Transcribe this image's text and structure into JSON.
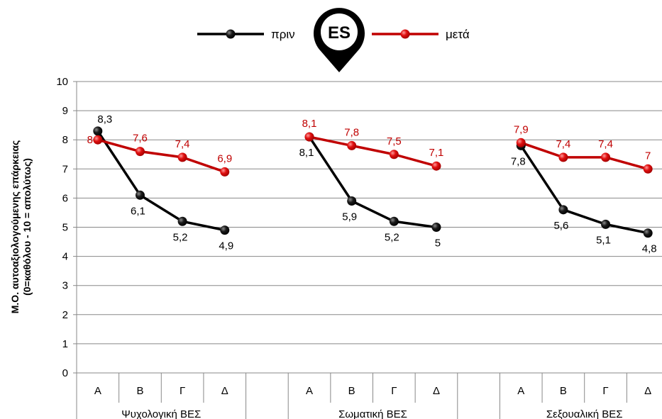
{
  "chart_data": {
    "type": "line",
    "ylabel": [
      "Μ.Ο. αυτοαξιολογούμενης επάρκειας",
      "(0=καθόλου - 10 = απολύτως)"
    ],
    "ylim": [
      0,
      10
    ],
    "yticks": [
      0,
      1,
      2,
      3,
      4,
      5,
      6,
      7,
      8,
      9,
      10
    ],
    "grid": true,
    "legend_position": "top-center",
    "logo_text": "ES",
    "groups": [
      {
        "name": "Ψυχολογική ΒΕΣ",
        "categories": [
          "Α",
          "Β",
          "Γ",
          "Δ"
        ]
      },
      {
        "name": "Σωματική ΒΕΣ",
        "categories": [
          "Α",
          "Β",
          "Γ",
          "Δ"
        ]
      },
      {
        "name": "Σεξουαλική ΒΕΣ",
        "categories": [
          "Α",
          "Β",
          "Γ",
          "Δ"
        ]
      }
    ],
    "series": [
      {
        "name": "πριν",
        "color": "#000000",
        "values": [
          [
            8.3,
            6.1,
            5.2,
            4.9
          ],
          [
            8.1,
            5.9,
            5.2,
            5
          ],
          [
            7.8,
            5.6,
            5.1,
            4.8
          ]
        ]
      },
      {
        "name": "μετά",
        "color": "#c00000",
        "values": [
          [
            8,
            7.6,
            7.4,
            6.9
          ],
          [
            8.1,
            7.8,
            7.5,
            7.1
          ],
          [
            7.9,
            7.4,
            7.4,
            7
          ]
        ]
      }
    ]
  }
}
